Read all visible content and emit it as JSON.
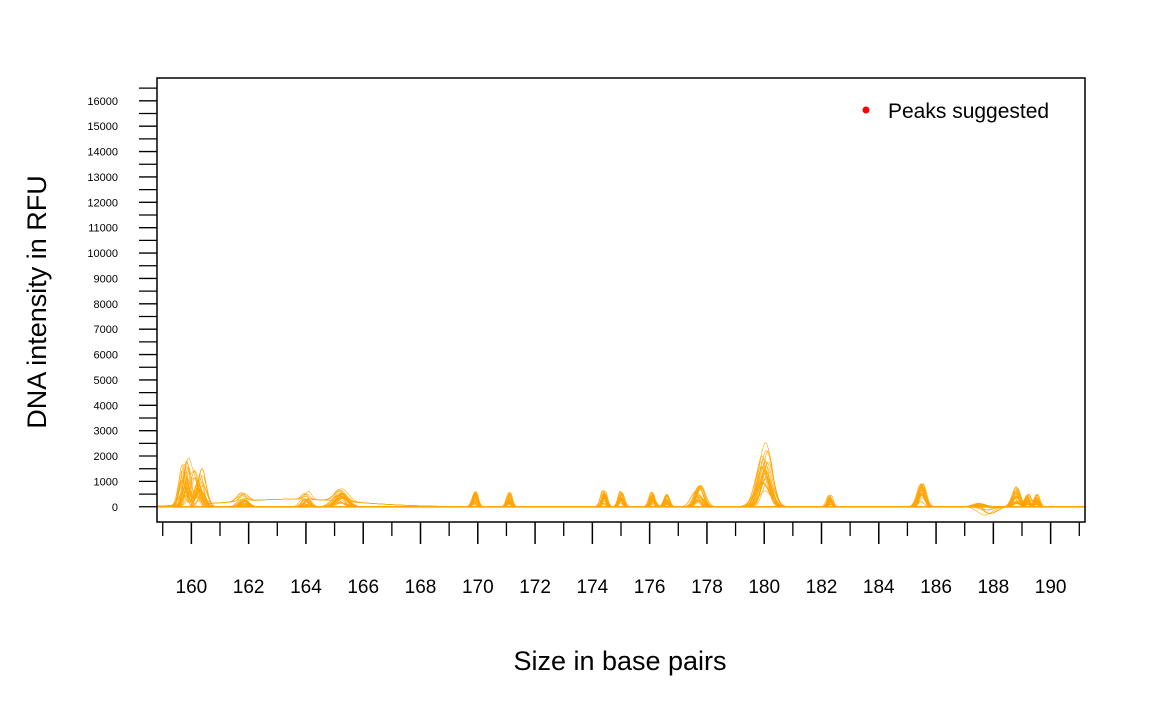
{
  "chart_data": {
    "type": "line",
    "xlabel": "Size in base pairs",
    "ylabel": "DNA intensity in RFU",
    "xlim": [
      158.8,
      191.2
    ],
    "ylim": [
      -600,
      16900
    ],
    "x_ticks_major": [
      160,
      162,
      164,
      166,
      168,
      170,
      172,
      174,
      176,
      178,
      180,
      182,
      184,
      186,
      188,
      190
    ],
    "x_ticks_minor": [
      159,
      161,
      163,
      165,
      167,
      169,
      171,
      173,
      175,
      177,
      179,
      181,
      183,
      185,
      187,
      189,
      191
    ],
    "y_ticks": [
      0,
      1000,
      2000,
      3000,
      4000,
      5000,
      6000,
      7000,
      8000,
      9000,
      10000,
      11000,
      12000,
      13000,
      14000,
      15000,
      16000
    ],
    "y_ticks_minor": [
      500,
      1500,
      2500,
      3500,
      4500,
      5500,
      6500,
      7500,
      8500,
      9500,
      10500,
      11500,
      12500,
      13500,
      14500,
      15500,
      16500
    ],
    "legend": {
      "position": "top-right",
      "label": "Peaks suggested",
      "marker_color": "#ff0000"
    },
    "line_color": "#ffa500",
    "series_count": 30,
    "peaks": [
      {
        "x": 159.8,
        "height": 1900,
        "width": 0.12,
        "spread": 0.3
      },
      {
        "x": 160.25,
        "height": 1650,
        "width": 0.14,
        "spread": 0.3
      },
      {
        "x": 161.8,
        "height": 350,
        "width": 0.15,
        "spread": 0.2
      },
      {
        "x": 164.0,
        "height": 350,
        "width": 0.12,
        "spread": 0.2
      },
      {
        "x": 165.2,
        "height": 550,
        "width": 0.2,
        "spread": 0.2
      },
      {
        "x": 169.9,
        "height": 650,
        "width": 0.08,
        "spread": 0.1
      },
      {
        "x": 171.1,
        "height": 600,
        "width": 0.08,
        "spread": 0.1
      },
      {
        "x": 174.4,
        "height": 650,
        "width": 0.08,
        "spread": 0.1
      },
      {
        "x": 175.0,
        "height": 650,
        "width": 0.08,
        "spread": 0.1
      },
      {
        "x": 176.1,
        "height": 600,
        "width": 0.08,
        "spread": 0.1
      },
      {
        "x": 176.6,
        "height": 500,
        "width": 0.08,
        "spread": 0.1
      },
      {
        "x": 177.7,
        "height": 900,
        "width": 0.15,
        "spread": 0.2
      },
      {
        "x": 180.0,
        "height": 2600,
        "width": 0.22,
        "spread": 0.3
      },
      {
        "x": 182.3,
        "height": 500,
        "width": 0.08,
        "spread": 0.1
      },
      {
        "x": 185.5,
        "height": 950,
        "width": 0.12,
        "spread": 0.1
      },
      {
        "x": 187.5,
        "height": 150,
        "width": 0.2,
        "spread": 0.1
      },
      {
        "x": 188.8,
        "height": 800,
        "width": 0.12,
        "spread": 0.1
      },
      {
        "x": 189.2,
        "height": 500,
        "width": 0.08,
        "spread": 0.1
      },
      {
        "x": 189.5,
        "height": 500,
        "width": 0.08,
        "spread": 0.1
      }
    ],
    "broad_humps": [
      {
        "x": 163.5,
        "height": 300,
        "sigma": 2.2
      }
    ],
    "dips": [
      {
        "x": 187.8,
        "depth": 350,
        "sigma": 0.25
      }
    ]
  }
}
